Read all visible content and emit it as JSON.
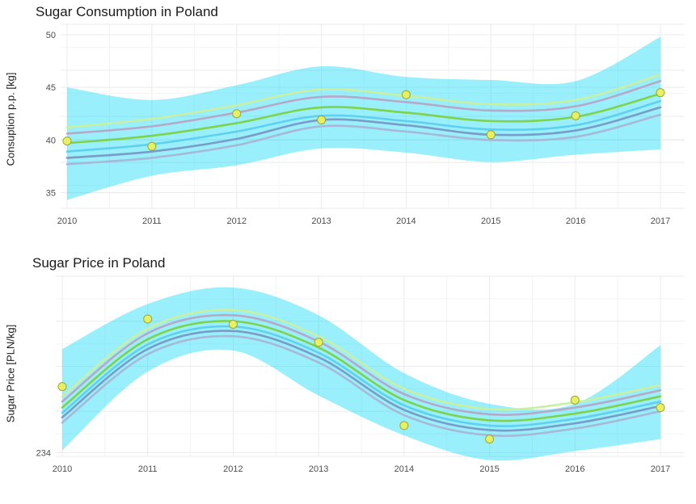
{
  "chart_data": [
    {
      "type": "line",
      "title": "Sugar Consumption in Poland",
      "xlabel": "",
      "ylabel": "Consuption p.p. [kg]",
      "x": [
        2010,
        2011,
        2012,
        2013,
        2014,
        2015,
        2016,
        2017
      ],
      "xlim": [
        2010,
        2017
      ],
      "ylim": [
        33.5,
        51
      ],
      "yticks": [
        35,
        40,
        45,
        50
      ],
      "points": [
        39.9,
        39.4,
        42.5,
        41.9,
        44.3,
        40.5,
        42.3,
        44.5
      ],
      "band": {
        "upper": [
          45.0,
          43.8,
          45.2,
          47.0,
          46.0,
          45.7,
          45.6,
          49.8
        ],
        "lower": [
          34.3,
          36.6,
          37.6,
          39.2,
          38.8,
          37.9,
          38.6,
          39.1
        ]
      },
      "lines": [
        {
          "color": "#c8f0a0",
          "values": [
            41.2,
            42.0,
            43.3,
            44.8,
            44.2,
            43.4,
            43.8,
            46.2
          ]
        },
        {
          "color": "#b8a8c8",
          "values": [
            40.6,
            41.3,
            42.6,
            44.1,
            43.6,
            42.8,
            43.2,
            45.6
          ]
        },
        {
          "color": "#7ed348",
          "values": [
            39.7,
            40.4,
            41.6,
            43.1,
            42.6,
            41.8,
            42.2,
            44.4
          ]
        },
        {
          "color": "#5fd0f0",
          "values": [
            38.9,
            39.6,
            40.8,
            42.3,
            41.8,
            41.0,
            41.4,
            43.7
          ]
        },
        {
          "color": "#7a9cc8",
          "values": [
            38.3,
            38.9,
            40.1,
            41.9,
            41.4,
            40.5,
            40.9,
            43.1
          ]
        },
        {
          "color": "#a8b8d8",
          "values": [
            37.7,
            38.3,
            39.5,
            41.3,
            40.8,
            40.0,
            40.3,
            42.4
          ]
        }
      ]
    },
    {
      "type": "line",
      "title": "Sugar Price in Poland",
      "xlabel": "",
      "ylabel": "Sugar Price [PLN/kg]",
      "x": [
        2010,
        2011,
        2012,
        2013,
        2014,
        2015,
        2016,
        2017
      ],
      "xlim": [
        2010,
        2017
      ],
      "ylim": [
        233.5,
        257.5
      ],
      "yticks": [
        234
      ],
      "points": [
        242.8,
        251.8,
        251.1,
        248.7,
        237.6,
        235.8,
        241.0,
        240.0
      ],
      "band": {
        "upper": [
          247.8,
          253.8,
          256.0,
          252.3,
          244.6,
          240.5,
          240.5,
          248.3
        ],
        "lower": [
          234.3,
          244.8,
          247.6,
          241.6,
          236.3,
          233.0,
          234.2,
          235.8
        ]
      },
      "lines": [
        {
          "color": "#c8f0a0",
          "values": [
            241.5,
            250.5,
            253.0,
            249.5,
            242.5,
            239.8,
            240.7,
            243.0
          ]
        },
        {
          "color": "#b8a8c8",
          "values": [
            240.8,
            249.9,
            252.3,
            248.8,
            241.8,
            239.1,
            240.0,
            242.3
          ]
        },
        {
          "color": "#7ed348",
          "values": [
            240.0,
            249.1,
            251.5,
            248.0,
            241.0,
            238.3,
            239.2,
            241.5
          ]
        },
        {
          "color": "#5fd0f0",
          "values": [
            239.3,
            248.4,
            250.8,
            247.3,
            240.3,
            237.6,
            238.5,
            240.8
          ]
        },
        {
          "color": "#7a9cc8",
          "values": [
            238.7,
            247.8,
            250.2,
            246.7,
            239.7,
            237.0,
            237.9,
            240.2
          ]
        },
        {
          "color": "#a8b8d8",
          "values": [
            238.0,
            247.1,
            249.5,
            246.0,
            239.0,
            236.3,
            237.2,
            239.5
          ]
        }
      ]
    }
  ],
  "colors": {
    "band": "#00d8f8",
    "point_fill": "#e8f060",
    "point_stroke": "#9aa838",
    "grid": "#ebebeb"
  }
}
